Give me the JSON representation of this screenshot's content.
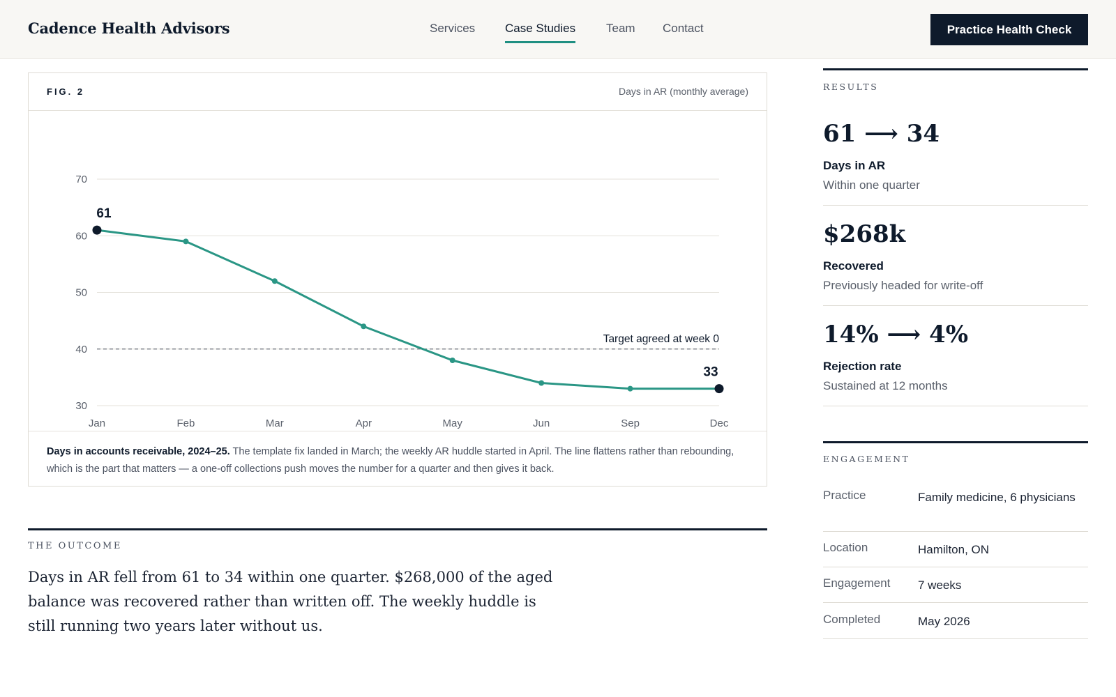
{
  "header": {
    "brand": "Cadence Health Advisors",
    "nav": [
      {
        "label": "Services",
        "active": false
      },
      {
        "label": "Case Studies",
        "active": true
      },
      {
        "label": "Team",
        "active": false
      },
      {
        "label": "Contact",
        "active": false
      }
    ],
    "cta_label": "Practice Health Check"
  },
  "figure": {
    "label": "FIG. 2",
    "subtitle": "Days in AR (monthly average)",
    "caption_bold": "Days in accounts receivable, 2024–25.",
    "caption_text": " The template fix landed in March; the weekly AR huddle started in April. The line flattens rather than rebounding, which is the part that matters — a one-off collections push moves the number for a quarter and then gives it back."
  },
  "chart_data": {
    "type": "line",
    "title": "",
    "xlabel": "",
    "ylabel": "",
    "categories": [
      "Jan",
      "Feb",
      "Mar",
      "Apr",
      "May",
      "Jun",
      "Sep",
      "Dec"
    ],
    "series": [
      {
        "values": [
          61,
          59,
          52,
          44,
          38,
          34,
          33,
          33
        ],
        "color": "#2a9685"
      }
    ],
    "ylim": [
      30,
      70
    ],
    "yticks": [
      70,
      60,
      50,
      40,
      30
    ],
    "grid": true,
    "target_line": {
      "value": 40,
      "label": "Target agreed at week 0"
    },
    "data_labels": [
      {
        "index": 0,
        "text": "61"
      },
      {
        "index": 7,
        "text": "33"
      }
    ]
  },
  "outcome": {
    "label": "THE OUTCOME",
    "text": "Days in AR fell from 61 to 34 within one quarter. $268,000 of the aged balance was recovered rather than written off. The weekly huddle is still running two years later without us."
  },
  "results": {
    "label": "RESULTS",
    "stats": [
      {
        "value": "61 ⟶ 34",
        "label": "Days in AR",
        "sub": "Within one quarter"
      },
      {
        "value": "$268k",
        "label": "Recovered",
        "sub": "Previously headed for write-off"
      },
      {
        "value": "14% ⟶ 4%",
        "label": "Rejection rate",
        "sub": "Sustained at 12 months"
      }
    ]
  },
  "engagement": {
    "label": "ENGAGEMENT",
    "rows": [
      {
        "key": "Practice",
        "value": "Family medicine, 6 physicians"
      },
      {
        "key": "Location",
        "value": "Hamilton, ON"
      },
      {
        "key": "Engagement",
        "value": "7 weeks"
      },
      {
        "key": "Completed",
        "value": "May 2026"
      }
    ]
  },
  "colors": {
    "navy": "#0e1a2b",
    "accent": "#1f8f82",
    "line": "#2a9685"
  }
}
